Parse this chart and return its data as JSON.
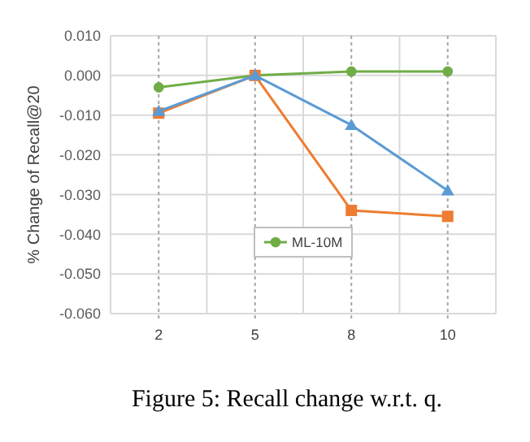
{
  "chart_data": {
    "type": "line",
    "categories": [
      "2",
      "5",
      "8",
      "10"
    ],
    "ylabel": "% Change of Recall@20",
    "ylim": [
      -0.06,
      0.01
    ],
    "yticks": [
      {
        "value": -0.06,
        "label": "-0.060"
      },
      {
        "value": -0.05,
        "label": "-0.050"
      },
      {
        "value": -0.04,
        "label": "-0.040"
      },
      {
        "value": -0.03,
        "label": "-0.030"
      },
      {
        "value": -0.02,
        "label": "-0.020"
      },
      {
        "value": -0.01,
        "label": "-0.010"
      },
      {
        "value": 0,
        "label": "0.000"
      },
      {
        "value": 0.01,
        "label": "0.010"
      }
    ],
    "grid": true,
    "legend": "bottom",
    "annotations": [
      "Figure 5: Recall change w.r.t. q."
    ],
    "series": [
      {
        "color": "#5b9bd5",
        "marker": "triangle",
        "values": [
          -0.009,
          0,
          -0.0125,
          -0.029
        ]
      },
      {
        "color": "#ed7d31",
        "marker": "square",
        "values": [
          -0.0095,
          0,
          -0.034,
          -0.0355
        ]
      },
      {
        "name": "ML-10M",
        "color": "#70ad47",
        "marker": "circle",
        "values": [
          -0.003,
          0,
          0.001,
          0.001
        ]
      }
    ]
  }
}
